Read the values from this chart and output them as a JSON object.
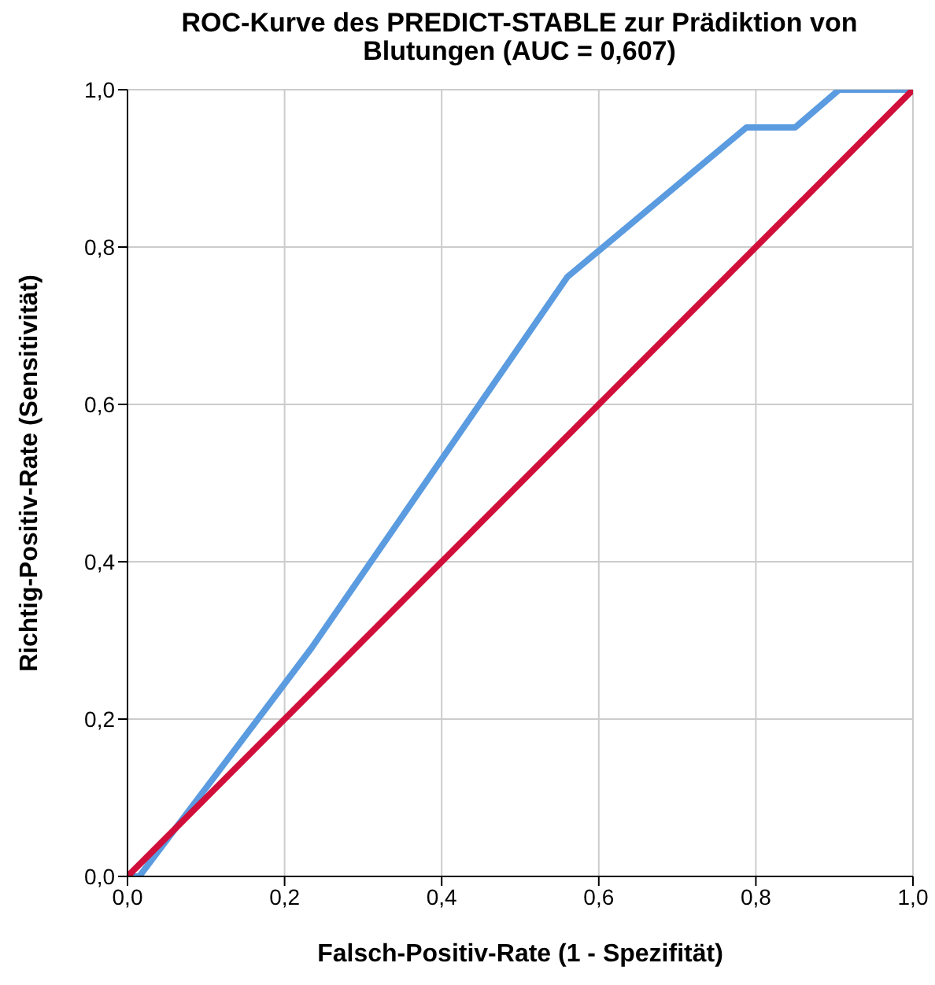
{
  "chart_data": {
    "type": "line",
    "title": "ROC-Kurve des PREDICT-STABLE zur Prädiktion von Blutungen (AUC = 0,607)",
    "xlabel": "Falsch-Positiv-Rate (1 - Spezifität)",
    "ylabel": "Richtig-Positiv-Rate (Sensitivität)",
    "series": [
      {
        "color": "#5b9be0",
        "x": [
          0,
          0.015,
          0.234,
          0.56,
          0.788,
          0.85,
          0.906,
          1
        ],
        "values": [
          0,
          0,
          0.29,
          0.762,
          0.952,
          0.952,
          1,
          1
        ]
      },
      {
        "color": "#d0103a",
        "x": [
          0,
          1
        ],
        "values": [
          0,
          1
        ]
      }
    ],
    "xlim": [
      0,
      1
    ],
    "ylim": [
      0,
      1
    ],
    "xticks": [
      {
        "value": 0,
        "label": "0,0"
      },
      {
        "value": 0.2,
        "label": "0,2"
      },
      {
        "value": 0.4,
        "label": "0,4"
      },
      {
        "value": 0.6,
        "label": "0,6"
      },
      {
        "value": 0.8,
        "label": "0,8"
      },
      {
        "value": 1,
        "label": "1,0"
      }
    ],
    "yticks": [
      {
        "value": 0,
        "label": "0,0"
      },
      {
        "value": 0.2,
        "label": "0,2"
      },
      {
        "value": 0.4,
        "label": "0,4"
      },
      {
        "value": 0.6,
        "label": "0,6"
      },
      {
        "value": 0.8,
        "label": "0,8"
      },
      {
        "value": 1,
        "label": "1,0"
      }
    ],
    "grid": true,
    "marker": "none",
    "line_style": "solid"
  }
}
